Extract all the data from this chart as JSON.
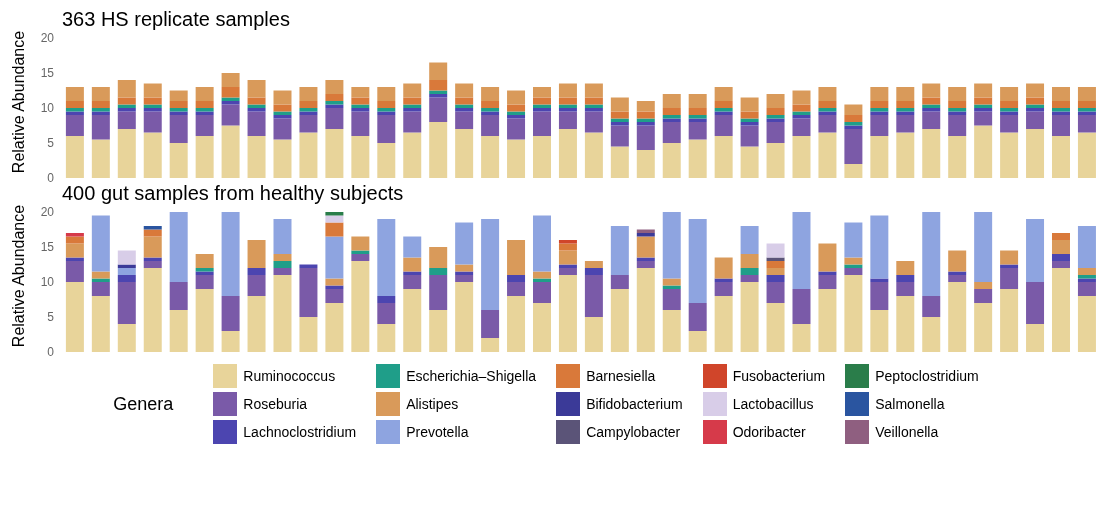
{
  "chart_data": [
    {
      "type": "bar",
      "stacked": true,
      "title": "363 HS replicate samples",
      "ylabel": "Relative Abundance",
      "ylim": [
        0,
        20
      ],
      "yticks": [
        0,
        5,
        10,
        15,
        20
      ],
      "tick_labels": "y",
      "legend": false,
      "categories": [
        null,
        null,
        null,
        null,
        null,
        null,
        null,
        null,
        null,
        null,
        null,
        null,
        null,
        null,
        null,
        null,
        null,
        null,
        null,
        null,
        null,
        null,
        null,
        null,
        null,
        null,
        null,
        null,
        null,
        null,
        null,
        null,
        null,
        null,
        null,
        null,
        null,
        null,
        null,
        null
      ],
      "series": [
        {
          "color": "#e8d49a",
          "values": [
            6,
            5.5,
            7,
            6.5,
            5,
            6,
            7.5,
            6,
            5.5,
            6.5,
            7,
            6,
            5,
            6.5,
            8,
            7,
            6,
            5.5,
            6,
            7,
            6.5,
            4.5,
            4,
            5,
            5.5,
            6,
            4.5,
            5,
            6,
            6.5,
            2,
            6,
            6.5,
            7,
            6,
            7.5,
            6.5,
            7,
            6,
            6.5
          ]
        },
        {
          "color": "#7a5aa8",
          "values": [
            3,
            3.5,
            2.5,
            3,
            4,
            3,
            3,
            3.5,
            3,
            2.5,
            3,
            3.5,
            4,
            3,
            3.5,
            2.5,
            3,
            3,
            3.5,
            2.5,
            3,
            3,
            3.5,
            3,
            2.5,
            3,
            3,
            3,
            2.5,
            2.5,
            5,
            3,
            2.5,
            2.5,
            3,
            2,
            2.5,
            2.5,
            3,
            2.5
          ]
        },
        {
          "color": "#4c45b0",
          "values": [
            0.5,
            0.5,
            0.5,
            0.5,
            0.5,
            0.5,
            0.5,
            0.5,
            0.5,
            0.5,
            0.5,
            0.5,
            0.5,
            0.5,
            0.5,
            0.5,
            0.5,
            0.5,
            0.5,
            0.5,
            0.5,
            0.5,
            0.5,
            0.5,
            0.5,
            0.5,
            0.5,
            0.5,
            0.5,
            0.5,
            0.5,
            0.5,
            0.5,
            0.5,
            0.5,
            0.5,
            0.5,
            0.5,
            0.5,
            0.5
          ]
        },
        {
          "color": "#1f9e89",
          "values": [
            0.5,
            0.5,
            0.5,
            0.5,
            0.5,
            0.5,
            0.5,
            0.5,
            0.5,
            0.5,
            0.5,
            0.5,
            0.5,
            0.5,
            0.5,
            0.5,
            0.5,
            0.5,
            0.5,
            0.5,
            0.5,
            0.5,
            0.5,
            0.5,
            0.5,
            0.5,
            0.5,
            0.5,
            0.5,
            0.5,
            0.5,
            0.5,
            0.5,
            0.5,
            0.5,
            0.5,
            0.5,
            0.5,
            0.5,
            0.5
          ]
        },
        {
          "color": "#d9793a",
          "values": [
            1,
            1,
            1,
            1,
            1,
            1,
            1.5,
            1,
            1,
            1,
            1,
            1,
            1,
            1,
            1.5,
            1,
            1,
            1,
            1,
            1,
            1,
            1,
            1,
            1,
            1,
            1,
            1,
            1,
            1,
            1,
            1,
            1,
            1,
            1,
            1,
            1,
            1,
            1,
            1,
            1
          ]
        },
        {
          "color": "#d99a5a",
          "values": [
            2,
            2,
            2.5,
            2,
            1.5,
            2,
            2,
            2.5,
            2,
            2,
            2,
            1.5,
            2,
            2,
            2.5,
            2,
            2,
            2,
            1.5,
            2,
            2,
            2,
            1.5,
            2,
            2,
            2,
            2,
            2,
            2,
            2,
            1.5,
            2,
            2,
            2,
            2,
            2,
            2,
            2,
            2,
            2
          ]
        }
      ]
    },
    {
      "type": "bar",
      "stacked": true,
      "title": "400 gut samples from healthy subjects",
      "ylabel": "Relative Abundance",
      "ylim": [
        0,
        20
      ],
      "yticks": [
        0,
        5,
        10,
        15,
        20
      ],
      "tick_labels": "y",
      "legend": "bottom",
      "legend_title": "Genera",
      "categories": [
        null,
        null,
        null,
        null,
        null,
        null,
        null,
        null,
        null,
        null,
        null,
        null,
        null,
        null,
        null,
        null,
        null,
        null,
        null,
        null,
        null,
        null,
        null,
        null,
        null,
        null,
        null,
        null,
        null,
        null,
        null,
        null,
        null,
        null,
        null,
        null,
        null,
        null,
        null,
        null
      ],
      "series": [
        {
          "name": "Ruminococcus",
          "color": "#e8d49a",
          "values": [
            10,
            8,
            4,
            12,
            6,
            9,
            3,
            8,
            11,
            5,
            7,
            13,
            4,
            9,
            6,
            10,
            2,
            8,
            7,
            11,
            5,
            9,
            12,
            6,
            3,
            8,
            10,
            7,
            4,
            9,
            11,
            6,
            8,
            5,
            10,
            7,
            9,
            4,
            12,
            8
          ]
        },
        {
          "name": "Roseburia",
          "color": "#7a5aa8",
          "values": [
            3,
            2,
            6,
            1,
            4,
            2,
            5,
            3,
            1,
            7,
            2,
            1,
            3,
            2,
            5,
            1,
            4,
            2,
            3,
            1,
            6,
            2,
            1,
            3,
            4,
            2,
            1,
            3,
            5,
            2,
            1,
            4,
            2,
            3,
            1,
            2,
            3,
            6,
            1,
            2
          ]
        },
        {
          "name": "Lachnoclostridium",
          "color": "#4c45b0",
          "values": [
            0.5,
            0,
            1,
            0.5,
            0,
            0.5,
            0,
            1,
            0,
            0.5,
            0.5,
            0,
            1,
            0.5,
            0,
            0.5,
            0,
            1,
            0,
            0.5,
            1,
            0,
            0.5,
            0,
            0,
            0.5,
            0,
            1,
            0,
            0.5,
            0,
            0.5,
            1,
            0,
            0.5,
            0,
            0.5,
            0,
            1,
            0.5
          ]
        },
        {
          "name": "Escherichia–Shigella",
          "color": "#1f9e89",
          "values": [
            0,
            0.5,
            0,
            0,
            0,
            0.5,
            0,
            0,
            1,
            0,
            0,
            0.5,
            0,
            0,
            1,
            0,
            0,
            0,
            0.5,
            0,
            0,
            0,
            0,
            0.5,
            0,
            0,
            1,
            0,
            0,
            0,
            0.5,
            0,
            0,
            0,
            0,
            0,
            0,
            0,
            0,
            0.5
          ]
        },
        {
          "name": "Alistipes",
          "color": "#d99a5a",
          "values": [
            2,
            1,
            0,
            3,
            0,
            2,
            0,
            4,
            1,
            0,
            1,
            2,
            0,
            2,
            3,
            1,
            0,
            5,
            1,
            2,
            1,
            0,
            3,
            1,
            0,
            3,
            2,
            1,
            0,
            4,
            1,
            0,
            2,
            0,
            3,
            1,
            2,
            0,
            2,
            1
          ]
        },
        {
          "name": "Prevotella",
          "color": "#8ea4e0",
          "values": [
            0,
            8,
            1,
            0,
            10,
            0,
            12,
            0,
            5,
            0,
            6,
            0,
            11,
            3,
            0,
            6,
            13,
            0,
            8,
            0,
            0,
            7,
            0,
            9.5,
            12,
            0,
            4,
            0,
            11,
            0,
            5,
            9,
            0,
            12,
            0,
            10,
            0,
            9,
            0,
            6
          ]
        },
        {
          "name": "Barnesiella",
          "color": "#d9793a",
          "values": [
            1,
            0,
            0,
            1,
            0,
            0,
            0,
            0,
            0,
            0,
            2,
            0,
            0,
            0,
            0,
            0,
            0,
            0,
            0,
            1,
            0,
            0,
            0,
            0,
            0,
            0,
            0,
            1,
            0,
            0,
            0,
            0,
            0,
            0,
            0,
            0,
            0,
            0,
            1,
            0
          ]
        },
        {
          "name": "Bifidobacterium",
          "color": "#3b3a98",
          "values": [
            0,
            0,
            0.5,
            0,
            0,
            0,
            0,
            0,
            0,
            0,
            0,
            0,
            0,
            0,
            0,
            0,
            0,
            0,
            0,
            0,
            0,
            0,
            0.5,
            0,
            0,
            0,
            0,
            0,
            0,
            0,
            0,
            0,
            0,
            0,
            0,
            0,
            0,
            0,
            0,
            0
          ]
        },
        {
          "name": "Campylobacter",
          "color": "#5b5478",
          "values": [
            0,
            0,
            0,
            0,
            0,
            0,
            0,
            0,
            0,
            0,
            0,
            0,
            0,
            0,
            0,
            0,
            0,
            0,
            0,
            0,
            0,
            0,
            0,
            0,
            0,
            0,
            0,
            0.5,
            0,
            0,
            0,
            0,
            0,
            0,
            0,
            0,
            0,
            0,
            0,
            0
          ]
        },
        {
          "name": "Fusobacterium",
          "color": "#d0452a",
          "values": [
            0,
            0,
            0,
            0,
            0,
            0,
            0,
            0,
            0,
            0,
            0,
            0,
            0,
            0,
            0,
            0,
            0,
            0,
            0,
            0.5,
            0,
            0,
            0,
            0,
            0,
            0,
            0,
            0,
            0,
            0,
            0,
            0,
            0,
            0,
            0,
            0,
            0,
            0,
            0,
            0
          ]
        },
        {
          "name": "Lactobacillus",
          "color": "#d8cde8",
          "values": [
            0,
            0,
            2,
            0,
            0,
            0,
            0,
            0,
            0,
            0,
            1,
            0,
            0,
            0,
            0,
            0,
            0,
            0,
            0,
            0,
            0,
            0,
            0,
            0,
            0,
            0,
            0,
            2,
            0,
            0,
            0,
            0,
            0,
            0,
            0,
            0,
            0,
            0,
            0,
            0
          ]
        },
        {
          "name": "Odoribacter",
          "color": "#d63a4a",
          "values": [
            0.5,
            0,
            0,
            0,
            0,
            0,
            0,
            0,
            0,
            0,
            0,
            0,
            0,
            0,
            0,
            0,
            0,
            0,
            0,
            0,
            0,
            0,
            0,
            0,
            0,
            0,
            0,
            0,
            0,
            0,
            0,
            0,
            0,
            0,
            0,
            0,
            0,
            0,
            0,
            0
          ]
        },
        {
          "name": "Peptoclostridium",
          "color": "#2a7d4a",
          "values": [
            0,
            0,
            0,
            0,
            0,
            0,
            0,
            0,
            0,
            0,
            0.5,
            0,
            0,
            0,
            0,
            0,
            0,
            0,
            0,
            0,
            0,
            0,
            0,
            0,
            0,
            0,
            0,
            0,
            0,
            0,
            0,
            0,
            0,
            0,
            0,
            0,
            0,
            0,
            0,
            0
          ]
        },
        {
          "name": "Salmonella",
          "color": "#2a55a0",
          "values": [
            0,
            0,
            0,
            0.5,
            0,
            0,
            0,
            0,
            0,
            0,
            0,
            0,
            0,
            0,
            0,
            0,
            0,
            0,
            0,
            0,
            0,
            0,
            0,
            0,
            0,
            0,
            0,
            0,
            0,
            0,
            0,
            0,
            0,
            0,
            0,
            0,
            0,
            0,
            0,
            0
          ]
        },
        {
          "name": "Veillonella",
          "color": "#8f5f80",
          "values": [
            0,
            0,
            0,
            0,
            0,
            0,
            0,
            0,
            0,
            0,
            0,
            0,
            0,
            0,
            0,
            0,
            0,
            0,
            0,
            0,
            0,
            0,
            0.5,
            0,
            0,
            0,
            0,
            0,
            0,
            0,
            0,
            0,
            0,
            0,
            0,
            0,
            0,
            0,
            0,
            0
          ]
        }
      ]
    }
  ]
}
